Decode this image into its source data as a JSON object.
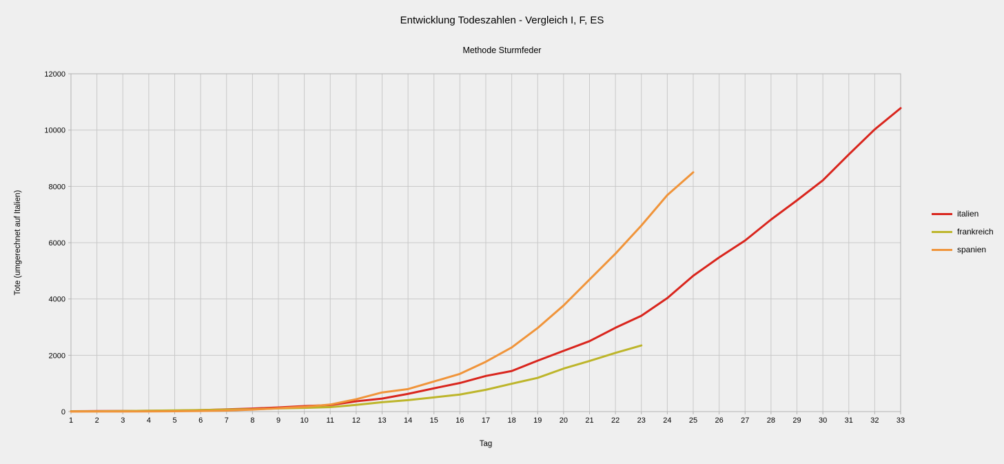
{
  "chart": {
    "title": "Entwicklung Todeszahlen - Vergleich I, F, ES",
    "subtitle": "Methode Sturmfeder",
    "xlabel": "Tag",
    "ylabel": "Tote (umgerechnet auf Italien)"
  },
  "chart_data": {
    "type": "line",
    "title": "Entwicklung Todeszahlen - Vergleich I, F, ES",
    "subtitle": "Methode Sturmfeder",
    "xlabel": "Tag",
    "ylabel": "Tote (umgerechnet auf Italien)",
    "x": [
      1,
      2,
      3,
      4,
      5,
      6,
      7,
      8,
      9,
      10,
      11,
      12,
      13,
      14,
      15,
      16,
      17,
      18,
      19,
      20,
      21,
      22,
      23,
      24,
      25,
      26,
      27,
      28,
      29,
      30,
      31,
      32,
      33
    ],
    "series": [
      {
        "name": "italien",
        "color": "#d9251d",
        "values": [
          12,
          17,
          21,
          29,
          34,
          52,
          79,
          107,
          148,
          197,
          233,
          366,
          463,
          631,
          827,
          1016,
          1266,
          1441,
          1809,
          2158,
          2503,
          2978,
          3405,
          4032,
          4825,
          5476,
          6077,
          6820,
          7503,
          8215,
          9134,
          10023,
          10779
        ]
      },
      {
        "name": "frankreich",
        "color": "#bdb52a",
        "values": [
          8,
          10,
          17,
          30,
          43,
          55,
          71,
          82,
          114,
          133,
          158,
          238,
          335,
          406,
          506,
          607,
          775,
          991,
          1199,
          1528,
          1798,
          2085,
          2349
        ]
      },
      {
        "name": "spanien",
        "color": "#f0943a",
        "values": [
          1,
          2,
          4,
          6,
          13,
          22,
          36,
          70,
          120,
          170,
          250,
          440,
          680,
          800,
          1070,
          1340,
          1770,
          2280,
          2970,
          3770,
          4690,
          5610,
          6610,
          7690,
          8500
        ]
      }
    ],
    "xlim": [
      1,
      33
    ],
    "ylim": [
      0,
      12000
    ],
    "x_ticks": [
      1,
      2,
      3,
      4,
      5,
      6,
      7,
      8,
      9,
      10,
      11,
      12,
      13,
      14,
      15,
      16,
      17,
      18,
      19,
      20,
      21,
      22,
      23,
      24,
      25,
      26,
      27,
      28,
      29,
      30,
      31,
      32,
      33
    ],
    "y_ticks": [
      0,
      2000,
      4000,
      6000,
      8000,
      10000,
      12000
    ],
    "grid": true,
    "legend_position": "right",
    "background": "#efefef",
    "grid_color": "#c8c8c8",
    "axis_color": "#b2b2b2"
  }
}
